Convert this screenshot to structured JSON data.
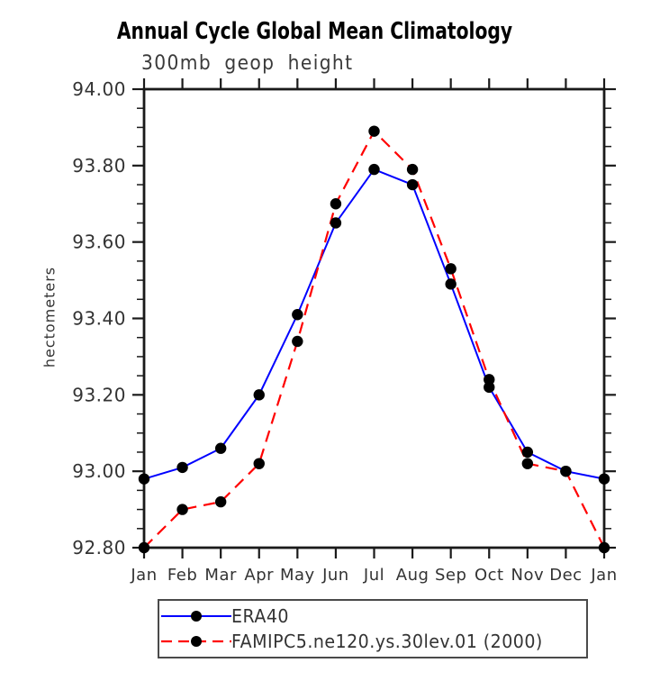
{
  "title": "Annual Cycle Global Mean Climatology",
  "subtitle": "300mb geop height",
  "y_axis_label": "hectometers",
  "chart_data": {
    "type": "line",
    "categories": [
      "Jan",
      "Feb",
      "Mar",
      "Apr",
      "May",
      "Jun",
      "Jul",
      "Aug",
      "Sep",
      "Oct",
      "Nov",
      "Dec",
      "Jan"
    ],
    "series": [
      {
        "name": "ERA40",
        "color": "#0000ff",
        "line_style": "solid",
        "values": [
          92.98,
          93.01,
          93.06,
          93.2,
          93.41,
          93.65,
          93.79,
          93.75,
          93.49,
          93.22,
          93.05,
          93.0,
          92.98
        ]
      },
      {
        "name": "FAMIPC5.ne120.ys.30lev.01 (2000)",
        "color": "#ff0000",
        "line_style": "dashed",
        "values": [
          92.8,
          92.9,
          92.92,
          93.02,
          93.34,
          93.7,
          93.89,
          93.79,
          93.53,
          93.24,
          93.02,
          93.0,
          92.8
        ]
      }
    ],
    "ylim": [
      92.8,
      94.0
    ],
    "y_major_tick_labels": [
      "94.00",
      "93.80",
      "93.60",
      "93.40",
      "93.20",
      "93.00",
      "92.80"
    ],
    "y_major_step": 0.2,
    "y_minor_step": 0.05,
    "marker": "filled-circle",
    "marker_color": "#000000",
    "axis_color": "#1a1a1a",
    "tick_label_color": "#333333",
    "grid": false,
    "legend_position": "bottom"
  }
}
